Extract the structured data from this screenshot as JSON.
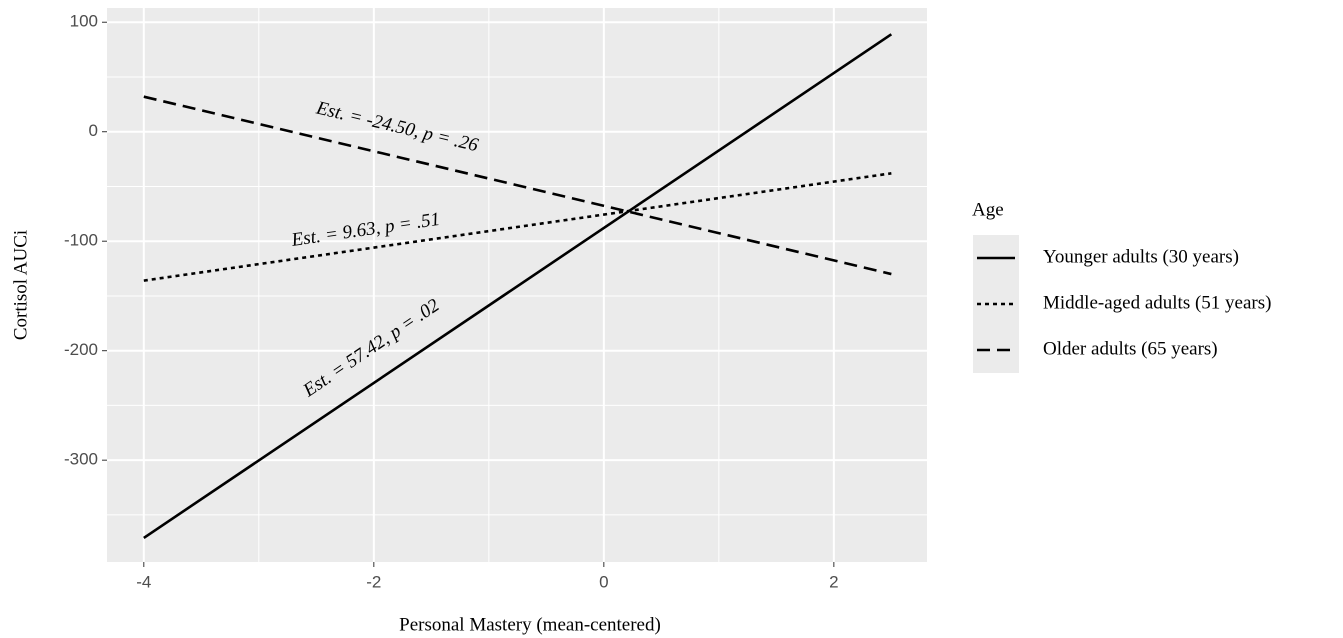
{
  "chart_data": {
    "type": "line",
    "x_label": "Personal Mastery (mean-centered)",
    "y_label": "Cortisol AUCi",
    "x": [
      -4,
      2.5
    ],
    "series": [
      {
        "name": "Younger adults (30 years)",
        "color": "#000000",
        "linetype": "solid",
        "values": [
          -371,
          89
        ]
      },
      {
        "name": "Middle-aged adults (51 years)",
        "color": "#000000",
        "linetype": "dotted",
        "values": [
          -136,
          -38
        ]
      },
      {
        "name": "Older adults (65 years)",
        "color": "#000000",
        "linetype": "dashed",
        "values": [
          32,
          -130
        ]
      }
    ],
    "annotations": [
      "Est. = 57.42, p = .02",
      "Est. = 9.63, p = .51",
      "Est. = -24.50, p = .26"
    ],
    "legend_title": "Age",
    "legend_position": "right",
    "xlim": [
      -4.32,
      2.81
    ],
    "xticks": [
      -4,
      -2,
      0,
      2
    ],
    "minor_xticks": [
      -3,
      -1,
      1
    ],
    "ylim": [
      -393,
      113
    ],
    "yticks": [
      -300,
      -200,
      -100,
      0,
      100
    ],
    "minor_yticks": [
      -350,
      -250,
      -150,
      -50,
      50
    ],
    "grid": true
  }
}
